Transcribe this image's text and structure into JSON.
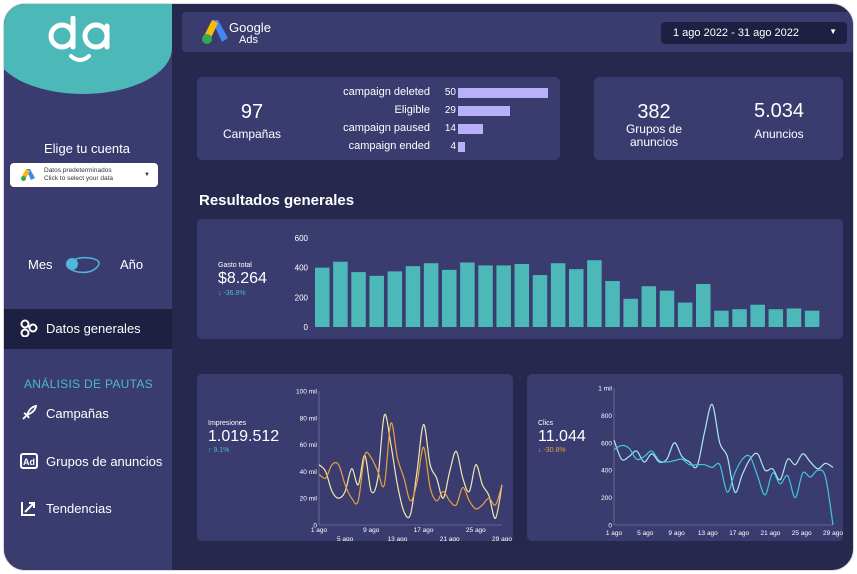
{
  "sidebar": {
    "account_heading": "Elige tu cuenta",
    "account_select": {
      "line1": "Datos predeterminados",
      "line2": "Click to select your data"
    },
    "period_left": "Mes",
    "period_right": "Año",
    "nav_active": "Datos generales",
    "section_heading": "ANÁLISIS DE PAUTAS",
    "nav_items": [
      {
        "label": "Campañas",
        "icon": "rocket-icon"
      },
      {
        "label": "Grupos de anuncios",
        "icon": "ad-icon"
      },
      {
        "label": "Tendencias",
        "icon": "trend-arrow-icon"
      }
    ]
  },
  "header": {
    "brand_line1": "Google",
    "brand_line2": "Ads",
    "date_range": "1 ago 2022 - 31 ago 2022"
  },
  "campaigns_card": {
    "count": "97",
    "label": "Campañas",
    "breakdown": [
      {
        "label": "campaign deleted",
        "value": 50
      },
      {
        "label": "Eligible",
        "value": 29
      },
      {
        "label": "campaign paused",
        "value": 14
      },
      {
        "label": "campaign ended",
        "value": 4
      }
    ]
  },
  "groups_card": {
    "groups_count": "382",
    "groups_label": "Grupos de anuncios",
    "ads_count": "5.034",
    "ads_label": "Anuncios"
  },
  "section_title": "Resultados generales",
  "spend": {
    "label": "Gasto total",
    "value": "$8.264",
    "delta": "-36.8%"
  },
  "impressions": {
    "label": "Impresiones",
    "value": "1.019.512",
    "delta": "9.1%"
  },
  "clicks": {
    "label": "Clics",
    "value": "11.044",
    "delta": "-30.8%"
  },
  "colors": {
    "teal": "#4db8b8",
    "purple_bar": "#b8b0f8",
    "orange": "#e8a040",
    "light_yellow": "#f0e8b0",
    "cyan": "#40c8e0",
    "light_cyan": "#a8e8f0"
  },
  "chart_data": [
    {
      "type": "bar",
      "ylim": [
        0,
        600
      ],
      "yticks": [
        "600",
        "400",
        "200",
        "0"
      ],
      "values": [
        400,
        440,
        370,
        345,
        375,
        410,
        430,
        385,
        435,
        415,
        415,
        425,
        350,
        430,
        390,
        450,
        310,
        190,
        275,
        245,
        165,
        290,
        110,
        120,
        150,
        120,
        125,
        110
      ]
    },
    {
      "type": "line",
      "yticks": [
        "100 mil",
        "80 mil",
        "60 mil",
        "40 mil",
        "20 mil",
        "0"
      ],
      "ylim": [
        0,
        100000
      ],
      "xticks_top": [
        "1 ago",
        "9 ago",
        "17 ago",
        "25 ago"
      ],
      "xticks_bottom": [
        "5 ago",
        "13 ago",
        "21 ago",
        "29 ago"
      ],
      "series": [
        {
          "values": [
            45000,
            40000,
            25000,
            20000,
            25000,
            42000,
            30000,
            52000,
            25000,
            35000,
            82000,
            60000,
            30000,
            10000,
            8000,
            40000,
            75000,
            45000,
            35000,
            20000,
            40000,
            55000,
            35000,
            25000,
            45000,
            30000,
            22000,
            5000,
            30000
          ]
        },
        {
          "values": [
            38000,
            35000,
            45000,
            45000,
            30000,
            20000,
            18000,
            52000,
            50000,
            40000,
            30000,
            76000,
            50000,
            35000,
            18000,
            32000,
            58000,
            28000,
            18000,
            25000,
            18000,
            15000,
            28000,
            18000,
            12000,
            15000,
            20000,
            15000,
            30000
          ]
        }
      ]
    },
    {
      "type": "line",
      "yticks": [
        "1 mil",
        "800",
        "600",
        "400",
        "200",
        "0"
      ],
      "ylim": [
        0,
        1000
      ],
      "xticks": [
        "1 ago",
        "5 ago",
        "9 ago",
        "13 ago",
        "17 ago",
        "21 ago",
        "25 ago",
        "29 ago"
      ],
      "series": [
        {
          "values": [
            620,
            480,
            500,
            540,
            460,
            520,
            460,
            480,
            600,
            500,
            460,
            430,
            680,
            880,
            600,
            500,
            240,
            370,
            480,
            520,
            400,
            410,
            330,
            480,
            440,
            520,
            460,
            410,
            450,
            420
          ]
        },
        {
          "values": [
            550,
            580,
            560,
            480,
            500,
            540,
            470,
            460,
            470,
            480,
            440,
            440,
            440,
            420,
            440,
            240,
            380,
            480,
            500,
            360,
            220,
            380,
            300,
            360,
            200,
            380,
            350,
            400,
            350,
            0
          ]
        }
      ]
    }
  ]
}
